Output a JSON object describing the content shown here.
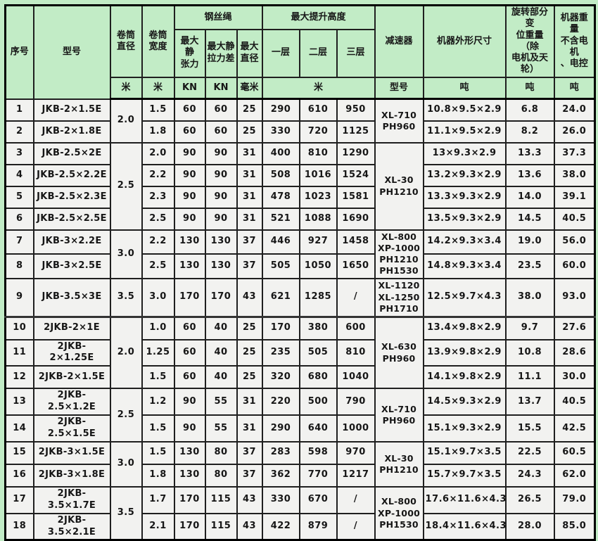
{
  "page": {
    "background_color": "#c2ecc6",
    "header_color": "#c2ecc6",
    "cell_color": "#f2f2f0"
  },
  "table": {
    "header": {
      "serial": "序号",
      "model": "型号",
      "drum_diameter": "卷筒\n直径",
      "drum_width": "卷筒\n宽度",
      "wire_rope_group": "钢丝绳",
      "max_static_tension": "最大静\n张力",
      "max_static_tension_diff": "最大静\n拉力差",
      "max_rope_diameter": "最大\n直径",
      "max_lift_height_group": "最大提升高度",
      "layer1": "一层",
      "layer2": "二层",
      "layer3": "三层",
      "reducer": "减速器",
      "dimensions": "机器外形尺寸",
      "rotating_weight": "旋转部分变\n位重量（除\n电机及天\n轮）",
      "machine_weight": "机器重量\n不含电机\n、电控"
    },
    "units": {
      "drum_diameter": "米",
      "drum_width": "米",
      "max_static_tension": "KN",
      "max_static_tension_diff": "KN",
      "max_rope_diameter": "毫米",
      "lift_height": "米",
      "reducer": "型号",
      "dimensions": "吨",
      "rotating_weight": "吨",
      "machine_weight": "吨"
    },
    "rows": [
      {
        "no": "1",
        "model": "JKB-2×1.5E",
        "drum_diameter": {
          "value": "2.0",
          "rowspan": 2
        },
        "drum_width": "1.5",
        "tension": "60",
        "tension_diff": "60",
        "rope_diameter": "25",
        "h1": "290",
        "h2": "610",
        "h3": "950",
        "reducer": {
          "lines": [
            "XL-710",
            "PH960"
          ],
          "rowspan": 2
        },
        "dimensions": "10.8×9.5×2.9",
        "rotating_weight": "6.8",
        "machine_weight": "24.0"
      },
      {
        "no": "2",
        "model": "JKB-2×1.8E",
        "drum_width": "1.8",
        "tension": "60",
        "tension_diff": "60",
        "rope_diameter": "25",
        "h1": "330",
        "h2": "720",
        "h3": "1125",
        "dimensions": "11.1×9.5×2.9",
        "rotating_weight": "8.2",
        "machine_weight": "26.0"
      },
      {
        "no": "3",
        "model": "JKB-2.5×2E",
        "drum_diameter": {
          "value": "2.5",
          "rowspan": 4
        },
        "drum_width": "2.0",
        "tension": "90",
        "tension_diff": "90",
        "rope_diameter": "31",
        "h1": "400",
        "h2": "810",
        "h3": "1290",
        "reducer": {
          "lines": [
            "XL-30",
            "PH1210"
          ],
          "rowspan": 4
        },
        "dimensions": "13×9.3×2.9",
        "rotating_weight": "13.3",
        "machine_weight": "37.3"
      },
      {
        "no": "4",
        "model": "JKB-2.5×2.2E",
        "drum_width": "2.2",
        "tension": "90",
        "tension_diff": "90",
        "rope_diameter": "31",
        "h1": "508",
        "h2": "1016",
        "h3": "1524",
        "dimensions": "13.2×9.3×2.9",
        "rotating_weight": "13.6",
        "machine_weight": "38.0"
      },
      {
        "no": "5",
        "model": "JKB-2.5×2.3E",
        "drum_width": "2.3",
        "tension": "90",
        "tension_diff": "90",
        "rope_diameter": "31",
        "h1": "478",
        "h2": "1023",
        "h3": "1581",
        "dimensions": "13.3×9.3×2.9",
        "rotating_weight": "14.0",
        "machine_weight": "39.1"
      },
      {
        "no": "6",
        "model": "JKB-2.5×2.5E",
        "drum_width": "2.5",
        "tension": "90",
        "tension_diff": "90",
        "rope_diameter": "31",
        "h1": "521",
        "h2": "1088",
        "h3": "1690",
        "dimensions": "13.5×9.3×2.9",
        "rotating_weight": "14.5",
        "machine_weight": "40.5"
      },
      {
        "no": "7",
        "model": "JKB-3×2.2E",
        "drum_diameter": {
          "value": "3.0",
          "rowspan": 2
        },
        "drum_width": "2.2",
        "tension": "130",
        "tension_diff": "130",
        "rope_diameter": "37",
        "h1": "446",
        "h2": "927",
        "h3": "1458",
        "reducer": {
          "lines": [
            "XL-800",
            "XP-1000",
            "PH1210",
            "PH1530"
          ],
          "rowspan": 2
        },
        "dimensions": "14.2×9.3×3.4",
        "rotating_weight": "19.0",
        "machine_weight": "56.0"
      },
      {
        "no": "8",
        "model": "JKB-3×2.5E",
        "drum_width": "2.5",
        "tension": "130",
        "tension_diff": "130",
        "rope_diameter": "37",
        "h1": "505",
        "h2": "1050",
        "h3": "1650",
        "dimensions": "14.8×9.3×3.4",
        "rotating_weight": "23.5",
        "machine_weight": "60.0"
      },
      {
        "no": "9",
        "model": "JKB-3.5×3E",
        "drum_diameter": {
          "value": "3.5",
          "rowspan": 1
        },
        "drum_width": "3.0",
        "tension": "170",
        "tension_diff": "170",
        "rope_diameter": "43",
        "h1": "621",
        "h2": "1285",
        "h3": "/",
        "reducer": {
          "lines": [
            "XL-1120",
            "XL-1250",
            "PH1710"
          ],
          "rowspan": 1
        },
        "dimensions": "12.5×9.7×4.3",
        "rotating_weight": "38.0",
        "machine_weight": "93.0"
      },
      {
        "no": "10",
        "model": "2JKB-2×1E",
        "drum_diameter": {
          "value": "2.0",
          "rowspan": 3
        },
        "drum_width": "1.0",
        "tension": "60",
        "tension_diff": "40",
        "rope_diameter": "25",
        "h1": "170",
        "h2": "380",
        "h3": "600",
        "reducer": {
          "lines": [
            "XL-630",
            "PH960"
          ],
          "rowspan": 3
        },
        "dimensions": "13.4×9.8×2.9",
        "rotating_weight": "9.7",
        "machine_weight": "27.6"
      },
      {
        "no": "11",
        "model": "2JKB-2×1.25E",
        "drum_width": "1.25",
        "tension": "60",
        "tension_diff": "40",
        "rope_diameter": "25",
        "h1": "235",
        "h2": "505",
        "h3": "810",
        "dimensions": "13.9×9.8×2.9",
        "rotating_weight": "10.8",
        "machine_weight": "28.6"
      },
      {
        "no": "12",
        "model": "2JKB-2×1.5E",
        "drum_width": "1.5",
        "tension": "60",
        "tension_diff": "40",
        "rope_diameter": "25",
        "h1": "320",
        "h2": "680",
        "h3": "1040",
        "dimensions": "14.1×9.8×2.9",
        "rotating_weight": "11.1",
        "machine_weight": "30.0"
      },
      {
        "no": "13",
        "model": "2JKB-2.5×1.2E",
        "drum_diameter": {
          "value": "2.5",
          "rowspan": 2
        },
        "drum_width": "1.2",
        "tension": "90",
        "tension_diff": "55",
        "rope_diameter": "31",
        "h1": "220",
        "h2": "500",
        "h3": "790",
        "reducer": {
          "lines": [
            "XL-710",
            "PH960"
          ],
          "rowspan": 2
        },
        "dimensions": "14.5×9.3×2.9",
        "rotating_weight": "13.7",
        "machine_weight": "40.5"
      },
      {
        "no": "14",
        "model": "2JKB-2.5×1.5E",
        "drum_width": "1.5",
        "tension": "90",
        "tension_diff": "55",
        "rope_diameter": "31",
        "h1": "290",
        "h2": "640",
        "h3": "1000",
        "dimensions": "15.1×9.3×2.9",
        "rotating_weight": "15.5",
        "machine_weight": "42.5"
      },
      {
        "no": "15",
        "model": "2JKB-3×1.5E",
        "drum_diameter": {
          "value": "3.0",
          "rowspan": 2
        },
        "drum_width": "1.5",
        "tension": "130",
        "tension_diff": "80",
        "rope_diameter": "37",
        "h1": "283",
        "h2": "598",
        "h3": "970",
        "reducer": {
          "lines": [
            "XL-30",
            "PH1210"
          ],
          "rowspan": 2
        },
        "dimensions": "15.1×9.7×3.5",
        "rotating_weight": "22.5",
        "machine_weight": "60.5"
      },
      {
        "no": "16",
        "model": "2JKB-3×1.8E",
        "drum_width": "1.8",
        "tension": "130",
        "tension_diff": "80",
        "rope_diameter": "37",
        "h1": "362",
        "h2": "770",
        "h3": "1217",
        "dimensions": "15.7×9.7×3.5",
        "rotating_weight": "24.3",
        "machine_weight": "62.0"
      },
      {
        "no": "17",
        "model": "2JKB-3.5×1.7E",
        "drum_diameter": {
          "value": "3.5",
          "rowspan": 2
        },
        "drum_width": "1.7",
        "tension": "170",
        "tension_diff": "115",
        "rope_diameter": "43",
        "h1": "330",
        "h2": "670",
        "h3": "/",
        "reducer": {
          "lines": [
            "XL-800",
            "XP-1000",
            "PH1530"
          ],
          "rowspan": 2
        },
        "dimensions": "17.6×11.6×4.3",
        "rotating_weight": "26.5",
        "machine_weight": "79.0"
      },
      {
        "no": "18",
        "model": "2JKB-3.5×2.1E",
        "drum_width": "2.1",
        "tension": "170",
        "tension_diff": "115",
        "rope_diameter": "43",
        "h1": "422",
        "h2": "879",
        "h3": "/",
        "dimensions": "18.4×11.6×4.3",
        "rotating_weight": "28.0",
        "machine_weight": "85.0"
      }
    ]
  }
}
